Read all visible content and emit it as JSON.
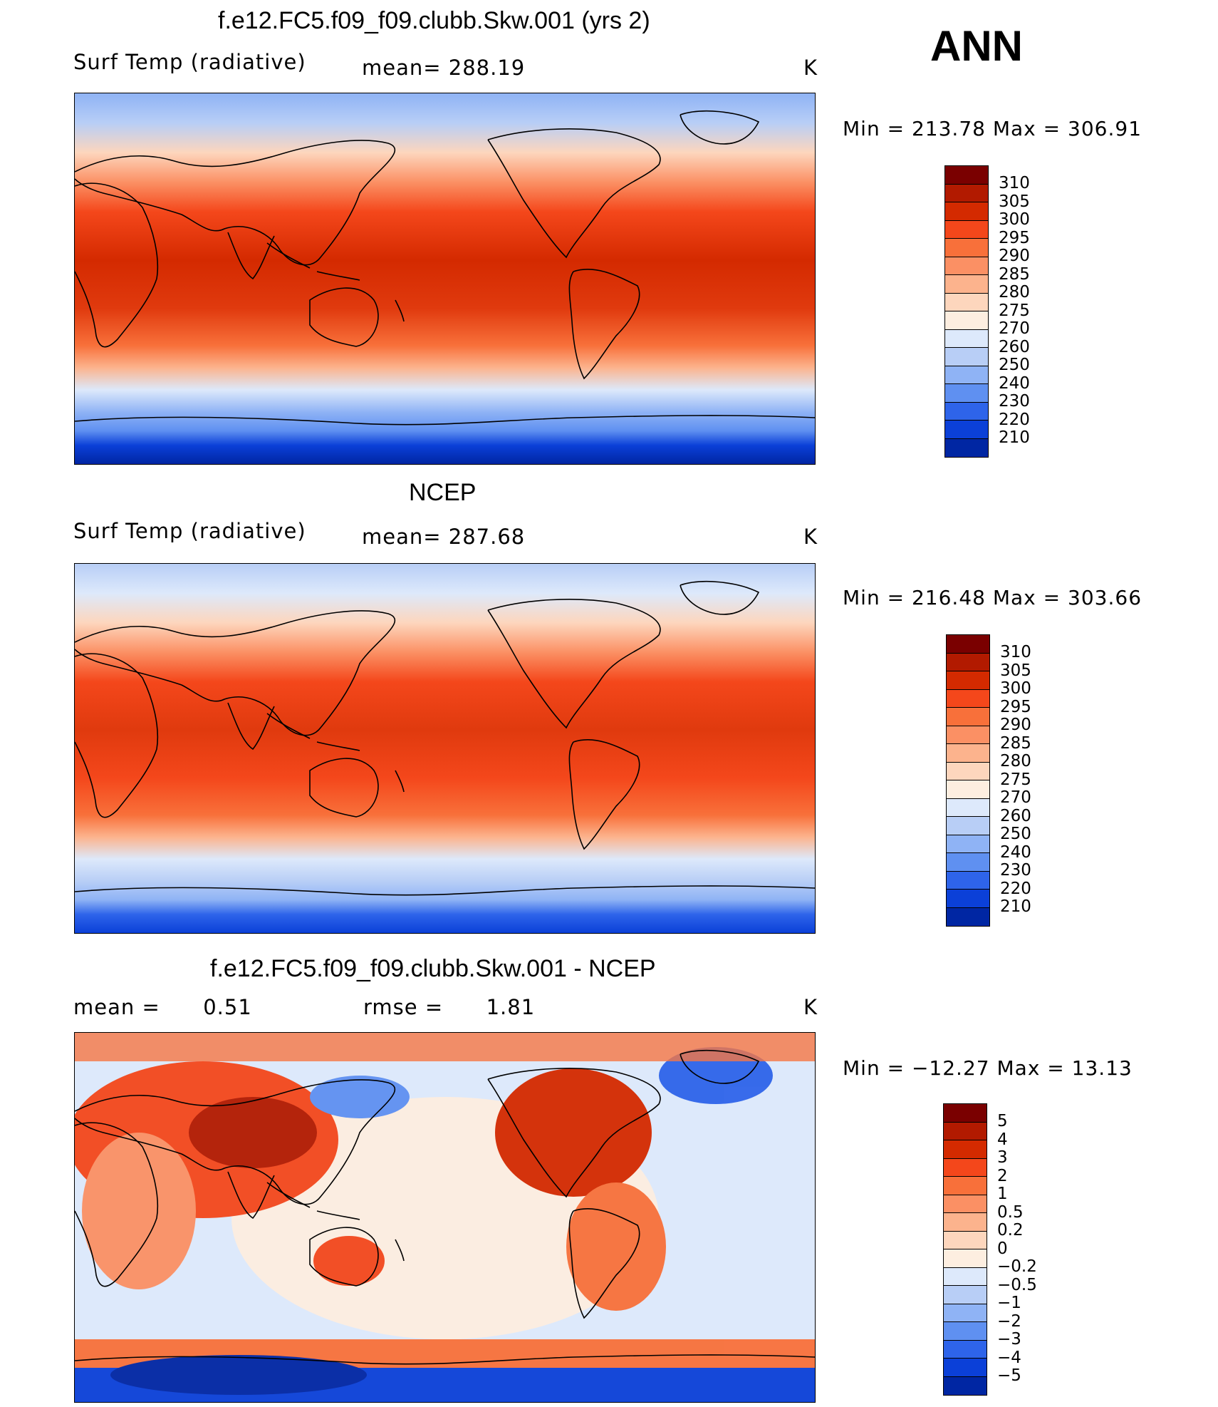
{
  "season": "ANN",
  "units": "K",
  "panels": [
    {
      "id": "model",
      "title": "f.e12.FC5.f09_f09.clubb.Skw.001 (yrs 2)",
      "variable": "Surf Temp (radiative)",
      "stat_label": "mean=",
      "stat_value": "288.19",
      "units": "K",
      "min_label": "Min",
      "min_value": "213.78",
      "max_label": "Max",
      "max_value": "306.91",
      "colorbar_levels": [
        "310",
        "305",
        "300",
        "295",
        "290",
        "285",
        "280",
        "275",
        "270",
        "260",
        "250",
        "240",
        "230",
        "220",
        "210"
      ],
      "colorbar_colors": [
        "#7a0000",
        "#b21a00",
        "#d42a00",
        "#f4471b",
        "#f8703a",
        "#fb9064",
        "#fcb38d",
        "#fdd6bd",
        "#fdeee0",
        "#dde9fb",
        "#b8cef6",
        "#8fb3f5",
        "#5f90f1",
        "#2e64ea",
        "#0b40d8",
        "#0026a3"
      ]
    },
    {
      "id": "obs",
      "title": "NCEP",
      "variable": "Surf Temp (radiative)",
      "stat_label": "mean=",
      "stat_value": "287.68",
      "units": "K",
      "min_label": "Min",
      "min_value": "216.48",
      "max_label": "Max",
      "max_value": "303.66",
      "colorbar_levels": [
        "310",
        "305",
        "300",
        "295",
        "290",
        "285",
        "280",
        "275",
        "270",
        "260",
        "250",
        "240",
        "230",
        "220",
        "210"
      ],
      "colorbar_colors": [
        "#7a0000",
        "#b21a00",
        "#d42a00",
        "#f4471b",
        "#f8703a",
        "#fb9064",
        "#fcb38d",
        "#fdd6bd",
        "#fdeee0",
        "#dde9fb",
        "#b8cef6",
        "#8fb3f5",
        "#5f90f1",
        "#2e64ea",
        "#0b40d8",
        "#0026a3"
      ]
    },
    {
      "id": "diff",
      "title": "f.e12.FC5.f09_f09.clubb.Skw.001 - NCEP",
      "mean_label": "mean =",
      "mean_value": "0.51",
      "rmse_label": "rmse =",
      "rmse_value": "1.81",
      "units": "K",
      "min_label": "Min",
      "min_value": "−12.27",
      "max_label": "Max",
      "max_value": "13.13",
      "colorbar_levels": [
        "5",
        "4",
        "3",
        "2",
        "1",
        "0.5",
        "0.2",
        "0",
        "−0.2",
        "−0.5",
        "−1",
        "−2",
        "−3",
        "−4",
        "−5"
      ],
      "colorbar_colors": [
        "#7a0000",
        "#b21a00",
        "#d42a00",
        "#f4471b",
        "#f8703a",
        "#fb9064",
        "#fcb38d",
        "#fdd6bd",
        "#fdeee0",
        "#dde9fb",
        "#b8cef6",
        "#8fb3f5",
        "#5f90f1",
        "#2e64ea",
        "#0b40d8",
        "#0026a3"
      ]
    }
  ]
}
